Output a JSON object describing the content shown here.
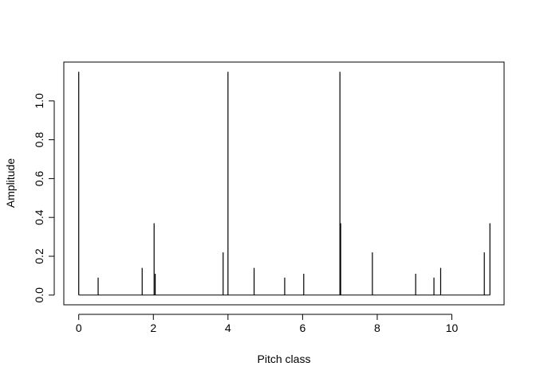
{
  "chart_data": {
    "type": "bar",
    "xlabel": "Pitch class",
    "ylabel": "Amplitude",
    "xlim": [
      -0.4,
      11.4
    ],
    "ylim": [
      -0.05,
      1.2
    ],
    "x_ticks": [
      0,
      2,
      4,
      6,
      8,
      10
    ],
    "y_ticks": [
      0.0,
      0.2,
      0.4,
      0.6,
      0.8,
      1.0
    ],
    "x_tick_labels": [
      "0",
      "2",
      "4",
      "6",
      "8",
      "10"
    ],
    "y_tick_labels": [
      "0.0",
      "0.2",
      "0.4",
      "0.6",
      "0.8",
      "1.0"
    ],
    "grid": false,
    "baseline": 0,
    "points": [
      {
        "x": 0.0,
        "y": 1.15
      },
      {
        "x": 0.52,
        "y": 0.09
      },
      {
        "x": 1.7,
        "y": 0.14
      },
      {
        "x": 2.02,
        "y": 0.37
      },
      {
        "x": 2.05,
        "y": 0.11
      },
      {
        "x": 3.87,
        "y": 0.22
      },
      {
        "x": 4.0,
        "y": 1.15
      },
      {
        "x": 4.7,
        "y": 0.14
      },
      {
        "x": 5.52,
        "y": 0.09
      },
      {
        "x": 6.03,
        "y": 0.11
      },
      {
        "x": 7.0,
        "y": 1.15
      },
      {
        "x": 7.02,
        "y": 0.37
      },
      {
        "x": 7.87,
        "y": 0.22
      },
      {
        "x": 9.03,
        "y": 0.11
      },
      {
        "x": 9.52,
        "y": 0.09
      },
      {
        "x": 9.7,
        "y": 0.14
      },
      {
        "x": 10.87,
        "y": 0.22
      },
      {
        "x": 11.02,
        "y": 0.37
      }
    ]
  }
}
